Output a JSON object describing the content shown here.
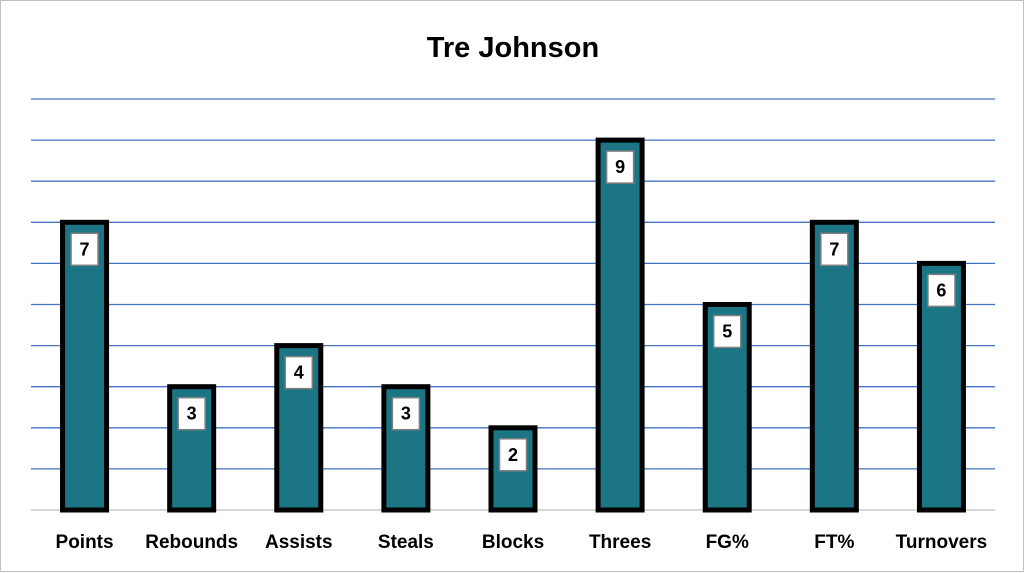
{
  "chart_data": {
    "type": "bar",
    "title": "Tre Johnson",
    "categories": [
      "Points",
      "Rebounds",
      "Assists",
      "Steals",
      "Blocks",
      "Threes",
      "FG%",
      "FT%",
      "Turnovers"
    ],
    "values": [
      7,
      3,
      4,
      3,
      2,
      9,
      5,
      7,
      6
    ],
    "ylim": [
      0,
      10
    ],
    "grid": true,
    "xlabel": "",
    "ylabel": "",
    "colors": {
      "bar_fill": "#1b7585",
      "bar_stroke": "#000000",
      "gridline": "#4472c4",
      "label_box_fill": "#ffffff",
      "label_box_stroke": "#7f7f7f"
    }
  }
}
